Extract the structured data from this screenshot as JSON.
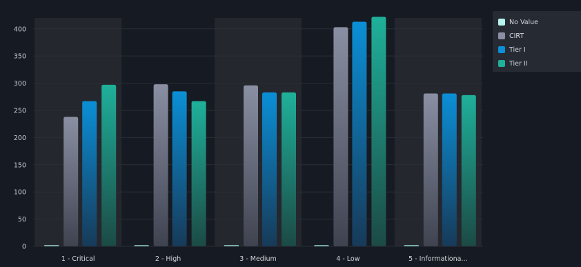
{
  "chart_data": {
    "type": "bar",
    "title": "",
    "xlabel": "",
    "ylabel": "",
    "categories": [
      "1 - Critical",
      "2 - High",
      "3 - Medium",
      "4 - Low",
      "5 - Informationa..."
    ],
    "yticks": [
      0,
      50,
      100,
      150,
      200,
      250,
      300,
      350,
      400
    ],
    "ylim": [
      0,
      420
    ],
    "grid": true,
    "legend_position": "top-right",
    "series": [
      {
        "name": "No Value",
        "values": [
          0,
          0,
          0,
          0,
          0
        ],
        "color_top": "#b9f5f0",
        "color_bottom": "#8fe3dc"
      },
      {
        "name": "CIRT",
        "values": [
          238,
          298,
          296,
          403,
          281
        ],
        "color_top": "#8a8fa3",
        "color_bottom": "#3f4350"
      },
      {
        "name": "Tier I",
        "values": [
          267,
          285,
          283,
          413,
          281
        ],
        "color_top": "#0b8fd6",
        "color_bottom": "#173a58"
      },
      {
        "name": "Tier II",
        "values": [
          297,
          267,
          283,
          422,
          278
        ],
        "color_top": "#1fb09a",
        "color_bottom": "#1c4a45"
      }
    ],
    "band_color": "#25272f"
  }
}
